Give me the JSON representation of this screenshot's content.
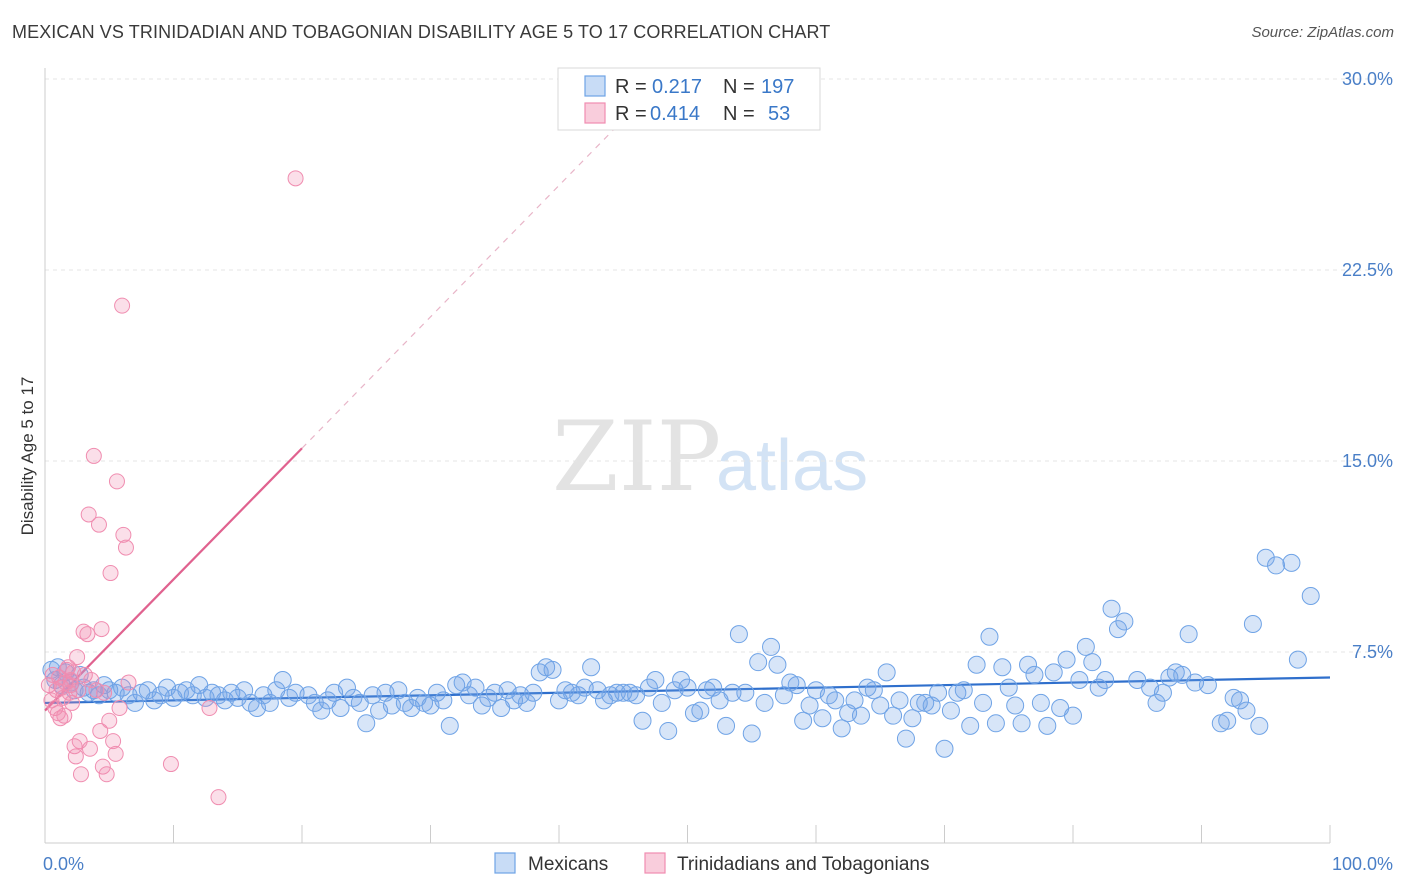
{
  "title": "MEXICAN VS TRINIDADIAN AND TOBAGONIAN DISABILITY AGE 5 TO 17 CORRELATION CHART",
  "source": "Source: ZipAtlas.com",
  "watermark": {
    "zip": "ZIP",
    "atlas": "atlas"
  },
  "colors": {
    "blue": "#6fa3e6",
    "blue_line": "#2f6fcc",
    "pink": "#f08db0",
    "pink_line": "#e0628f",
    "axis_text": "#4a7fc7"
  },
  "legend": {
    "rows": [
      {
        "r_label": "R =",
        "r_value": "0.217",
        "n_label": "N =",
        "n_value": "197",
        "color": "blue"
      },
      {
        "r_label": "R =",
        "r_value": "0.414",
        "n_label": "N =",
        "n_value": "53",
        "color": "pink"
      }
    ]
  },
  "bottom_legend": [
    "Mexicans",
    "Trinidadians and Tobagonians"
  ],
  "chart_data": {
    "type": "scatter",
    "title": "MEXICAN VS TRINIDADIAN AND TOBAGONIAN DISABILITY AGE 5 TO 17 CORRELATION CHART",
    "xlabel": "",
    "ylabel": "Disability Age 5 to 17",
    "xlim": [
      0,
      100
    ],
    "ylim": [
      0,
      30
    ],
    "x_tick_labels": [
      "0.0%",
      "100.0%"
    ],
    "y_ticks": [
      7.5,
      15.0,
      22.5,
      30.0
    ],
    "y_tick_labels": [
      "7.5%",
      "15.0%",
      "22.5%",
      "30.0%"
    ],
    "grid": true,
    "legend_position": "top-center",
    "series": [
      {
        "name": "Mexicans",
        "color": "blue",
        "trend": {
          "x": [
            0,
            100
          ],
          "y": [
            5.5,
            6.5
          ]
        },
        "points": [
          [
            0.5,
            6.8
          ],
          [
            0.8,
            6.4
          ],
          [
            1.0,
            6.9
          ],
          [
            1.3,
            6.2
          ],
          [
            1.6,
            6.7
          ],
          [
            2.0,
            6.3
          ],
          [
            2.3,
            6.0
          ],
          [
            2.7,
            6.6
          ],
          [
            3.0,
            6.1
          ],
          [
            3.4,
            5.9
          ],
          [
            3.8,
            6.0
          ],
          [
            4.2,
            5.8
          ],
          [
            4.6,
            6.2
          ],
          [
            5.0,
            6.0
          ],
          [
            5.5,
            5.9
          ],
          [
            6.0,
            6.1
          ],
          [
            6.5,
            5.8
          ],
          [
            7.0,
            5.5
          ],
          [
            7.5,
            5.9
          ],
          [
            8.0,
            6.0
          ],
          [
            8.5,
            5.6
          ],
          [
            9.0,
            5.8
          ],
          [
            9.5,
            6.1
          ],
          [
            10.0,
            5.7
          ],
          [
            10.5,
            5.9
          ],
          [
            11.0,
            6.0
          ],
          [
            11.5,
            5.8
          ],
          [
            12.0,
            6.2
          ],
          [
            12.5,
            5.7
          ],
          [
            13.0,
            5.9
          ],
          [
            13.5,
            5.8
          ],
          [
            14.0,
            5.6
          ],
          [
            14.5,
            5.9
          ],
          [
            15.0,
            5.7
          ],
          [
            15.5,
            6.0
          ],
          [
            16.0,
            5.5
          ],
          [
            16.5,
            5.3
          ],
          [
            17.0,
            5.8
          ],
          [
            17.5,
            5.5
          ],
          [
            18.0,
            6.0
          ],
          [
            18.5,
            6.4
          ],
          [
            19.0,
            5.7
          ],
          [
            19.5,
            5.9
          ],
          [
            20.5,
            5.8
          ],
          [
            21.0,
            5.5
          ],
          [
            21.5,
            5.2
          ],
          [
            22.0,
            5.6
          ],
          [
            22.5,
            5.9
          ],
          [
            23.0,
            5.3
          ],
          [
            23.5,
            6.1
          ],
          [
            24.0,
            5.7
          ],
          [
            24.5,
            5.5
          ],
          [
            25.0,
            4.7
          ],
          [
            25.5,
            5.8
          ],
          [
            26.0,
            5.2
          ],
          [
            26.5,
            5.9
          ],
          [
            27.0,
            5.4
          ],
          [
            27.5,
            6.0
          ],
          [
            28.0,
            5.5
          ],
          [
            28.5,
            5.3
          ],
          [
            29.0,
            5.7
          ],
          [
            29.5,
            5.5
          ],
          [
            30.0,
            5.4
          ],
          [
            30.5,
            5.9
          ],
          [
            31.0,
            5.6
          ],
          [
            31.5,
            4.6
          ],
          [
            32.0,
            6.2
          ],
          [
            32.5,
            6.3
          ],
          [
            33.0,
            5.8
          ],
          [
            33.5,
            6.1
          ],
          [
            34.0,
            5.4
          ],
          [
            34.5,
            5.7
          ],
          [
            35.0,
            5.9
          ],
          [
            35.5,
            5.3
          ],
          [
            36.0,
            6.0
          ],
          [
            36.5,
            5.6
          ],
          [
            37.0,
            5.8
          ],
          [
            37.5,
            5.5
          ],
          [
            38.0,
            5.9
          ],
          [
            38.5,
            6.7
          ],
          [
            39.0,
            6.9
          ],
          [
            39.5,
            6.8
          ],
          [
            40.0,
            5.6
          ],
          [
            40.5,
            6.0
          ],
          [
            41.0,
            5.9
          ],
          [
            41.5,
            5.8
          ],
          [
            42.0,
            6.1
          ],
          [
            42.5,
            6.9
          ],
          [
            43.0,
            6.0
          ],
          [
            43.5,
            5.6
          ],
          [
            44.0,
            5.8
          ],
          [
            44.5,
            5.9
          ],
          [
            45.0,
            5.9
          ],
          [
            45.5,
            5.9
          ],
          [
            46.0,
            5.8
          ],
          [
            46.5,
            4.8
          ],
          [
            47.0,
            6.1
          ],
          [
            47.5,
            6.4
          ],
          [
            48.0,
            5.5
          ],
          [
            48.5,
            4.4
          ],
          [
            49.0,
            6.0
          ],
          [
            49.5,
            6.4
          ],
          [
            50.0,
            6.1
          ],
          [
            50.5,
            5.1
          ],
          [
            51.0,
            5.2
          ],
          [
            51.5,
            6.0
          ],
          [
            52.0,
            6.1
          ],
          [
            52.5,
            5.6
          ],
          [
            53.0,
            4.6
          ],
          [
            53.5,
            5.9
          ],
          [
            54.0,
            8.2
          ],
          [
            54.5,
            5.9
          ],
          [
            55.0,
            4.3
          ],
          [
            55.5,
            7.1
          ],
          [
            56.0,
            5.5
          ],
          [
            56.5,
            7.7
          ],
          [
            57.0,
            7.0
          ],
          [
            57.5,
            5.8
          ],
          [
            58.0,
            6.3
          ],
          [
            58.5,
            6.2
          ],
          [
            59.0,
            4.8
          ],
          [
            59.5,
            5.4
          ],
          [
            60.0,
            6.0
          ],
          [
            60.5,
            4.9
          ],
          [
            61.0,
            5.8
          ],
          [
            61.5,
            5.6
          ],
          [
            62.0,
            4.5
          ],
          [
            62.5,
            5.1
          ],
          [
            63.0,
            5.6
          ],
          [
            63.5,
            5.0
          ],
          [
            64.0,
            6.1
          ],
          [
            64.5,
            6.0
          ],
          [
            65.0,
            5.4
          ],
          [
            65.5,
            6.7
          ],
          [
            66.0,
            5.0
          ],
          [
            66.5,
            5.6
          ],
          [
            67.0,
            4.1
          ],
          [
            67.5,
            4.9
          ],
          [
            68.0,
            5.5
          ],
          [
            68.5,
            5.5
          ],
          [
            69.0,
            5.4
          ],
          [
            69.5,
            5.9
          ],
          [
            70.0,
            3.7
          ],
          [
            70.5,
            5.2
          ],
          [
            71.0,
            5.9
          ],
          [
            71.5,
            6.0
          ],
          [
            72.0,
            4.6
          ],
          [
            72.5,
            7.0
          ],
          [
            73.0,
            5.5
          ],
          [
            73.5,
            8.1
          ],
          [
            74.0,
            4.7
          ],
          [
            74.5,
            6.9
          ],
          [
            75.0,
            6.1
          ],
          [
            75.5,
            5.4
          ],
          [
            76.0,
            4.7
          ],
          [
            76.5,
            7.0
          ],
          [
            77.0,
            6.6
          ],
          [
            77.5,
            5.5
          ],
          [
            78.0,
            4.6
          ],
          [
            78.5,
            6.7
          ],
          [
            79.0,
            5.3
          ],
          [
            79.5,
            7.2
          ],
          [
            80.0,
            5.0
          ],
          [
            80.5,
            6.4
          ],
          [
            81.0,
            7.7
          ],
          [
            81.5,
            7.1
          ],
          [
            82.0,
            6.1
          ],
          [
            82.5,
            6.4
          ],
          [
            83.0,
            9.2
          ],
          [
            83.5,
            8.4
          ],
          [
            84.0,
            8.7
          ],
          [
            85.0,
            6.4
          ],
          [
            86.0,
            6.1
          ],
          [
            86.5,
            5.5
          ],
          [
            87.0,
            5.9
          ],
          [
            87.5,
            6.5
          ],
          [
            88.0,
            6.7
          ],
          [
            88.5,
            6.6
          ],
          [
            89.0,
            8.2
          ],
          [
            89.5,
            6.3
          ],
          [
            90.5,
            6.2
          ],
          [
            91.5,
            4.7
          ],
          [
            92.0,
            4.8
          ],
          [
            92.5,
            5.7
          ],
          [
            93.0,
            5.6
          ],
          [
            93.5,
            5.2
          ],
          [
            94.0,
            8.6
          ],
          [
            94.5,
            4.6
          ],
          [
            95.0,
            11.2
          ],
          [
            95.8,
            10.9
          ],
          [
            97.0,
            11.0
          ],
          [
            97.5,
            7.2
          ],
          [
            98.5,
            9.7
          ]
        ]
      },
      {
        "name": "Trinidadians and Tobagonians",
        "color": "pink",
        "trend": {
          "x": [
            0,
            20
          ],
          "y": [
            5.2,
            15.5
          ],
          "dashed_extension": {
            "x": [
              20,
              45
            ],
            "y": [
              15.5,
              28.4
            ]
          }
        },
        "points": [
          [
            0.3,
            6.2
          ],
          [
            0.5,
            5.6
          ],
          [
            0.6,
            6.6
          ],
          [
            0.8,
            5.3
          ],
          [
            0.9,
            6.0
          ],
          [
            1.0,
            5.1
          ],
          [
            1.1,
            6.5
          ],
          [
            1.2,
            4.9
          ],
          [
            1.3,
            6.1
          ],
          [
            1.4,
            5.7
          ],
          [
            1.5,
            5.0
          ],
          [
            1.6,
            6.3
          ],
          [
            1.7,
            6.8
          ],
          [
            1.8,
            6.9
          ],
          [
            1.9,
            5.9
          ],
          [
            2.0,
            6.2
          ],
          [
            2.1,
            5.5
          ],
          [
            2.2,
            6.7
          ],
          [
            2.3,
            3.8
          ],
          [
            2.4,
            3.4
          ],
          [
            2.5,
            7.3
          ],
          [
            2.6,
            6.0
          ],
          [
            2.7,
            4.0
          ],
          [
            2.8,
            2.7
          ],
          [
            3.0,
            8.3
          ],
          [
            3.1,
            6.6
          ],
          [
            3.3,
            8.2
          ],
          [
            3.4,
            12.9
          ],
          [
            3.5,
            3.7
          ],
          [
            3.6,
            6.4
          ],
          [
            3.8,
            15.2
          ],
          [
            4.0,
            6.0
          ],
          [
            4.2,
            12.5
          ],
          [
            4.3,
            4.4
          ],
          [
            4.4,
            8.4
          ],
          [
            4.5,
            3.0
          ],
          [
            4.6,
            5.9
          ],
          [
            4.8,
            2.7
          ],
          [
            5.0,
            4.8
          ],
          [
            5.1,
            10.6
          ],
          [
            5.3,
            4.0
          ],
          [
            5.5,
            3.5
          ],
          [
            5.6,
            14.2
          ],
          [
            5.8,
            5.3
          ],
          [
            6.0,
            21.1
          ],
          [
            6.1,
            12.1
          ],
          [
            6.3,
            11.6
          ],
          [
            6.5,
            6.3
          ],
          [
            9.8,
            3.1
          ],
          [
            12.8,
            5.3
          ],
          [
            13.5,
            1.8
          ],
          [
            19.5,
            26.1
          ],
          [
            2.0,
            6.4
          ]
        ]
      }
    ]
  }
}
